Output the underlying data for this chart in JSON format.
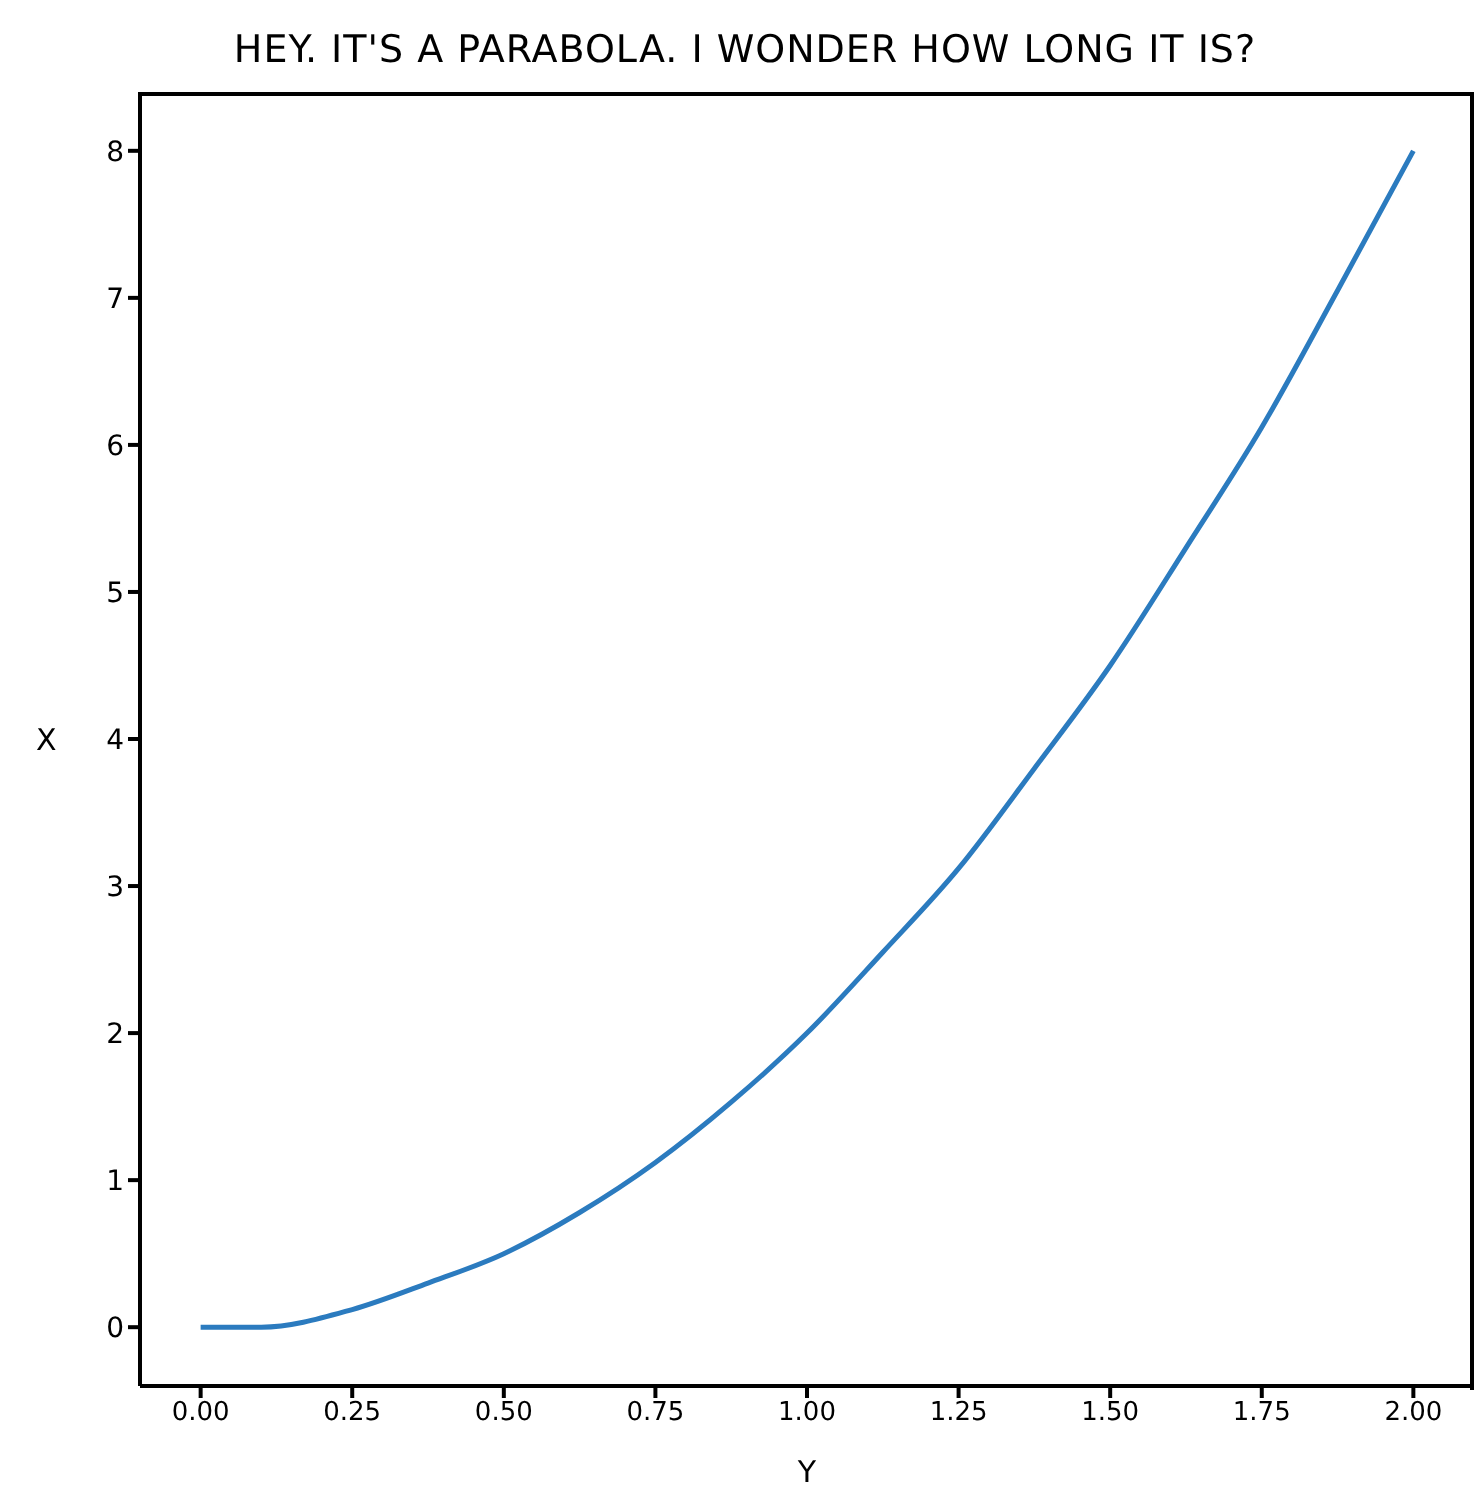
{
  "chart_data": {
    "type": "line",
    "title": "HEY. IT'S A PARABOLA. I WONDER HOW LONG IT IS?",
    "xlabel": "Y",
    "ylabel": "X",
    "x": [
      0,
      0.1,
      0.25,
      0.375,
      0.5,
      0.625,
      0.75,
      0.875,
      1,
      1.125,
      1.25,
      1.375,
      1.5,
      1.625,
      1.75,
      1.875,
      2
    ],
    "series": [
      {
        "color": "#2b7bbf",
        "values": [
          0,
          0,
          0.12,
          0.3,
          0.5,
          0.78,
          1.12,
          1.53,
          2,
          2.55,
          3.12,
          3.8,
          4.5,
          5.3,
          6.12,
          7.05,
          8
        ]
      }
    ],
    "xlim": [
      -0.1,
      2.1
    ],
    "ylim": [
      -0.4,
      8.4
    ],
    "xticks": [
      {
        "value": 0,
        "label": "0.00"
      },
      {
        "value": 0.25,
        "label": "0.25"
      },
      {
        "value": 0.5,
        "label": "0.50"
      },
      {
        "value": 0.75,
        "label": "0.75"
      },
      {
        "value": 1,
        "label": "1.00"
      },
      {
        "value": 1.25,
        "label": "1.25"
      },
      {
        "value": 1.5,
        "label": "1.50"
      },
      {
        "value": 1.75,
        "label": "1.75"
      },
      {
        "value": 2,
        "label": "2.00"
      }
    ],
    "yticks": [
      0,
      1,
      2,
      3,
      4,
      5,
      6,
      7,
      8
    ],
    "grid": false,
    "legend": false,
    "marker": "none",
    "line_style": "solid"
  }
}
